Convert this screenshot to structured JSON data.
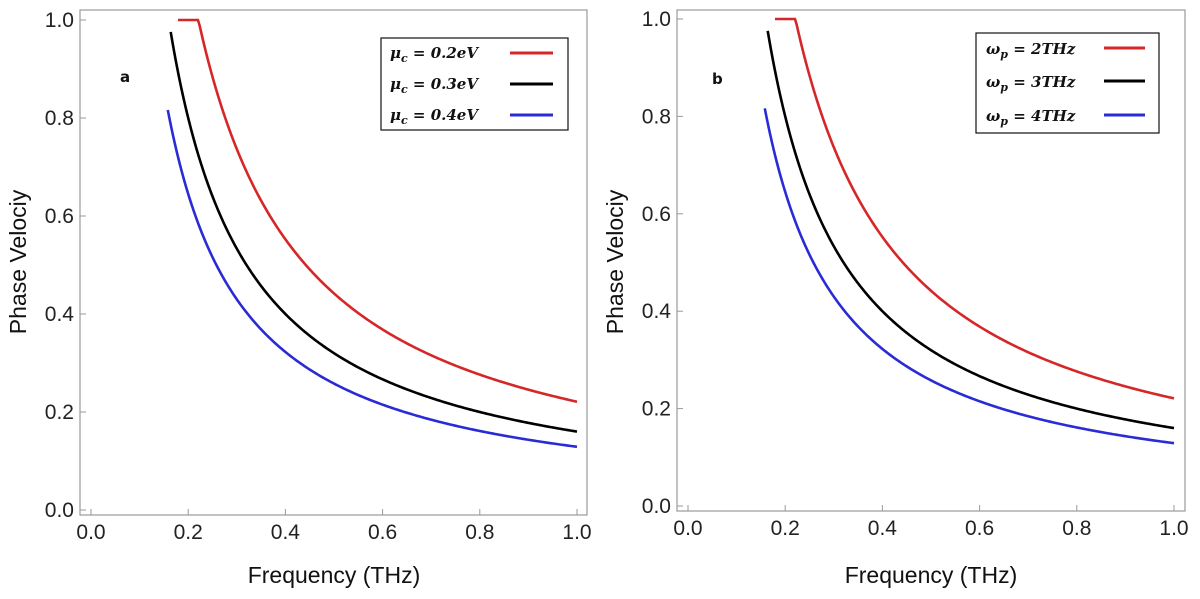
{
  "chart_data": [
    {
      "type": "line",
      "panel_label": "a",
      "title": "",
      "xlabel": "Frequency (THz)",
      "ylabel": "Phase Velociy",
      "xlim": [
        0.0,
        1.0
      ],
      "ylim": [
        0.0,
        1.0
      ],
      "x_ticks": [
        "0.0",
        "0.2",
        "0.4",
        "0.6",
        "0.8",
        "1.0"
      ],
      "y_ticks": [
        "0.0",
        "0.2",
        "0.4",
        "0.6",
        "0.8",
        "1.0"
      ],
      "grid": false,
      "legend_position": "top-right",
      "series": [
        {
          "name": "μc = 0.2eV",
          "symbol": "μ",
          "subscript": "c",
          "value_text": " = 0.2eV",
          "color": "#d62728",
          "A": 0.221,
          "x_start": 0.179
        },
        {
          "name": "μc = 0.3eV",
          "symbol": "μ",
          "subscript": "c",
          "value_text": " = 0.3eV",
          "color": "#000000",
          "A": 0.16,
          "x_start": 0.164
        },
        {
          "name": "μc = 0.4eV",
          "symbol": "μ",
          "subscript": "c",
          "value_text": " = 0.4eV",
          "color": "#2b2bd6",
          "A": 0.129,
          "x_start": 0.158
        }
      ]
    },
    {
      "type": "line",
      "panel_label": "b",
      "title": "",
      "xlabel": "Frequency (THz)",
      "ylabel": "Phase Velociy",
      "xlim": [
        0.0,
        1.0
      ],
      "ylim": [
        0.0,
        1.0
      ],
      "x_ticks": [
        "0.0",
        "0.2",
        "0.4",
        "0.6",
        "0.8",
        "1.0"
      ],
      "y_ticks": [
        "0.0",
        "0.2",
        "0.4",
        "0.6",
        "0.8",
        "1.0"
      ],
      "grid": false,
      "legend_position": "top-right",
      "series": [
        {
          "name": "ωp = 2THz",
          "symbol": "ω",
          "subscript": "p",
          "value_text": " = 2THz",
          "color": "#d62728",
          "A": 0.221,
          "x_start": 0.179
        },
        {
          "name": "ωp = 3THz",
          "symbol": "ω",
          "subscript": "p",
          "value_text": " = 3THz",
          "color": "#000000",
          "A": 0.16,
          "x_start": 0.164
        },
        {
          "name": "ωp = 4THz",
          "symbol": "ω",
          "subscript": "p",
          "value_text": " = 4THz",
          "color": "#2b2bd6",
          "A": 0.129,
          "x_start": 0.158
        }
      ]
    }
  ]
}
